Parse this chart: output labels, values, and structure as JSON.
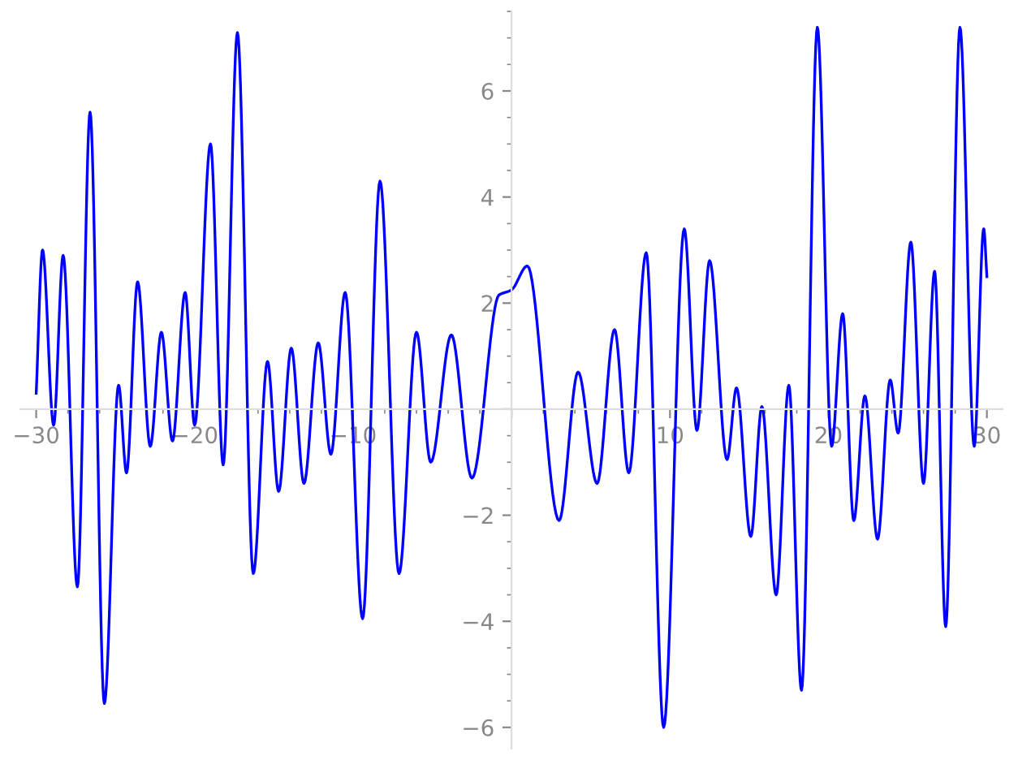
{
  "chart_data": {
    "type": "line",
    "color": "#0000ff",
    "xlim": [
      -31,
      31
    ],
    "ylim": [
      -6.4,
      7.5
    ],
    "xticks": [
      -30,
      -20,
      -10,
      {
        "value": 0,
        "label": null
      },
      10,
      20,
      30
    ],
    "yticks": [
      -6,
      -4,
      -2,
      {
        "value": 0,
        "label": null
      },
      2,
      4,
      6
    ],
    "grid": false,
    "marker": "none",
    "line_style": "solid",
    "x": [
      -30,
      -29.6,
      -28.9,
      -28.3,
      -27.4,
      -26.6,
      -25.7,
      -24.8,
      -24.3,
      -23.6,
      -22.8,
      -22.1,
      -21.4,
      -20.6,
      -20.0,
      -19.0,
      -18.2,
      -17.3,
      -16.3,
      -15.4,
      -14.7,
      -13.9,
      -13.1,
      -12.2,
      -11.4,
      -10.5,
      -9.4,
      -8.3,
      -7.1,
      -6.0,
      -5.1,
      -3.8,
      -2.5,
      -0.8,
      0,
      1.0,
      3.0,
      4.2,
      5.4,
      6.5,
      7.4,
      8.5,
      9.6,
      10.9,
      11.7,
      12.5,
      13.6,
      14.2,
      15.1,
      15.8,
      16.7,
      17.5,
      18.3,
      19.3,
      20.2,
      20.9,
      21.6,
      22.3,
      23.1,
      23.9,
      24.4,
      25.2,
      26.0,
      26.7,
      27.4,
      28.3,
      29.2,
      29.8,
      30.0
    ],
    "values": [
      0.3,
      3.0,
      -0.3,
      2.9,
      -3.35,
      5.6,
      -5.55,
      0.45,
      -1.2,
      2.4,
      -0.7,
      1.45,
      -0.6,
      2.2,
      -0.3,
      5.0,
      -1.05,
      7.1,
      -3.1,
      0.9,
      -1.55,
      1.15,
      -1.4,
      1.25,
      -0.85,
      2.2,
      -3.95,
      4.3,
      -3.1,
      1.45,
      -1.0,
      1.4,
      -1.3,
      2.15,
      2.25,
      2.7,
      -2.1,
      0.7,
      -1.4,
      1.5,
      -1.2,
      2.95,
      -6.0,
      3.4,
      -0.4,
      2.8,
      -0.95,
      0.4,
      -2.4,
      0.05,
      -3.5,
      0.45,
      -5.3,
      7.2,
      -0.7,
      1.8,
      -2.1,
      0.25,
      -2.45,
      0.55,
      -0.45,
      3.15,
      -1.4,
      2.6,
      -4.1,
      7.2,
      -0.7,
      3.4,
      2.5
    ]
  }
}
